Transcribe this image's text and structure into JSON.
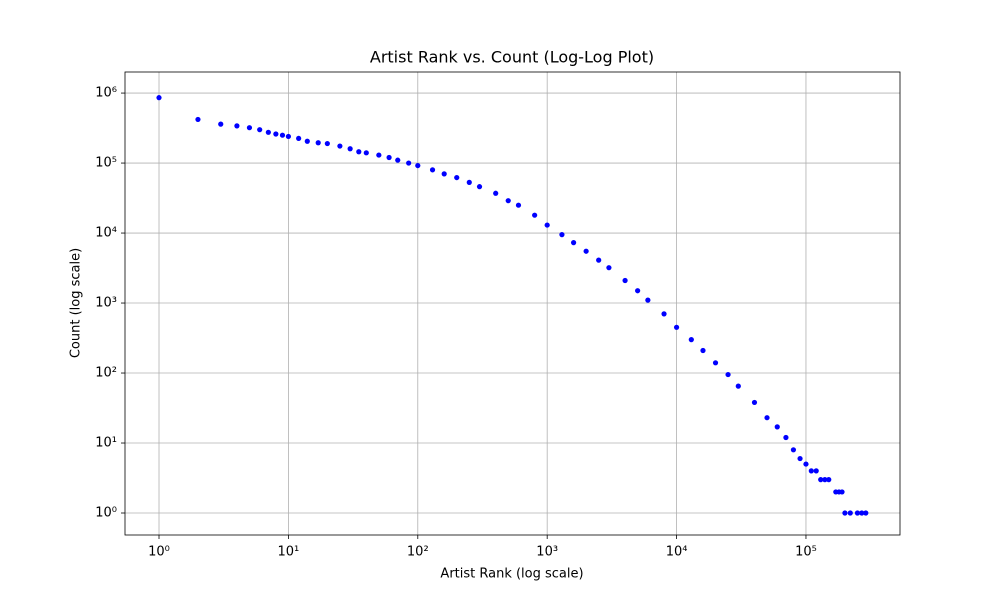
{
  "chart_data": {
    "type": "scatter",
    "title": "Artist Rank vs. Count (Log-Log Plot)",
    "x_label": "Artist Rank (log scale)",
    "y_label": "Count (log scale)",
    "xscale": "log",
    "yscale": "log",
    "grid": true,
    "xlim": [
      0.546,
      533000
    ],
    "ylim": [
      0.485,
      2000000
    ],
    "xticks": [
      {
        "value": 1,
        "label": "10⁰"
      },
      {
        "value": 10,
        "label": "10¹"
      },
      {
        "value": 100,
        "label": "10²"
      },
      {
        "value": 1000,
        "label": "10³"
      },
      {
        "value": 10000,
        "label": "10⁴"
      },
      {
        "value": 100000,
        "label": "10⁵"
      }
    ],
    "yticks": [
      {
        "value": 1,
        "label": "10⁰"
      },
      {
        "value": 10,
        "label": "10¹"
      },
      {
        "value": 100,
        "label": "10²"
      },
      {
        "value": 1000,
        "label": "10³"
      },
      {
        "value": 10000,
        "label": "10⁴"
      },
      {
        "value": 100000,
        "label": "10⁵"
      },
      {
        "value": 1000000,
        "label": "10⁶"
      }
    ],
    "series": [
      {
        "color": "#0000ff",
        "x": [
          1,
          2,
          3,
          4,
          5,
          6,
          7,
          8,
          9,
          10,
          12,
          14,
          17,
          20,
          25,
          30,
          35,
          40,
          50,
          60,
          70,
          85,
          100,
          130,
          160,
          200,
          250,
          300,
          400,
          500,
          600,
          800,
          1000,
          1300,
          1600,
          2000,
          2500,
          3000,
          4000,
          5000,
          6000,
          8000,
          10000,
          13000,
          16000,
          20000,
          25000,
          30000,
          40000,
          50000,
          60000,
          70000,
          80000,
          90000,
          100000,
          110000,
          120000,
          130000,
          140000,
          150000,
          170000,
          180000,
          190000,
          200000,
          220000,
          250000,
          270000,
          290000
        ],
        "values": [
          860000,
          420000,
          360000,
          340000,
          320000,
          300000,
          275000,
          260000,
          250000,
          240000,
          225000,
          205000,
          195000,
          190000,
          175000,
          160000,
          145000,
          140000,
          130000,
          120000,
          110000,
          100000,
          92000,
          80000,
          70000,
          62000,
          53000,
          46000,
          37000,
          29000,
          25000,
          18000,
          13000,
          9500,
          7300,
          5500,
          4100,
          3200,
          2100,
          1500,
          1100,
          700,
          450,
          300,
          210,
          140,
          95,
          65,
          38,
          23,
          17,
          12,
          8,
          6,
          5,
          4,
          4,
          3,
          3,
          3,
          2,
          2,
          2,
          1,
          1,
          1,
          1,
          1
        ]
      }
    ]
  }
}
